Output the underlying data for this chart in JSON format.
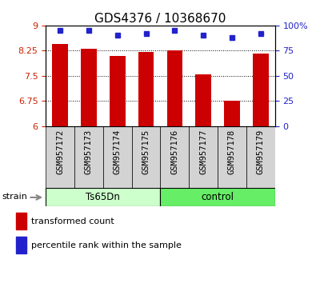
{
  "title": "GDS4376 / 10368670",
  "categories": [
    "GSM957172",
    "GSM957173",
    "GSM957174",
    "GSM957175",
    "GSM957176",
    "GSM957177",
    "GSM957178",
    "GSM957179"
  ],
  "bar_values": [
    8.45,
    8.3,
    8.1,
    8.2,
    8.26,
    7.55,
    6.75,
    8.15
  ],
  "dot_values": [
    95,
    95,
    90,
    92,
    95,
    90,
    88,
    92
  ],
  "ylim_left": [
    6,
    9
  ],
  "ylim_right": [
    0,
    100
  ],
  "yticks_left": [
    6,
    6.75,
    7.5,
    8.25,
    9
  ],
  "yticks_right": [
    0,
    25,
    50,
    75,
    100
  ],
  "bar_color": "#cc0000",
  "dot_color": "#2222cc",
  "bar_width": 0.55,
  "group_ts_color": "#ccffcc",
  "group_ctrl_color": "#66ee66",
  "strain_label": "strain",
  "legend_items": [
    {
      "label": "transformed count",
      "color": "#cc0000"
    },
    {
      "label": "percentile rank within the sample",
      "color": "#2222cc"
    }
  ],
  "tick_color_left": "#cc2200",
  "tick_color_right": "#2222cc",
  "title_fontsize": 11,
  "tick_fontsize": 8,
  "xtick_fontsize": 7.5,
  "legend_fontsize": 8
}
